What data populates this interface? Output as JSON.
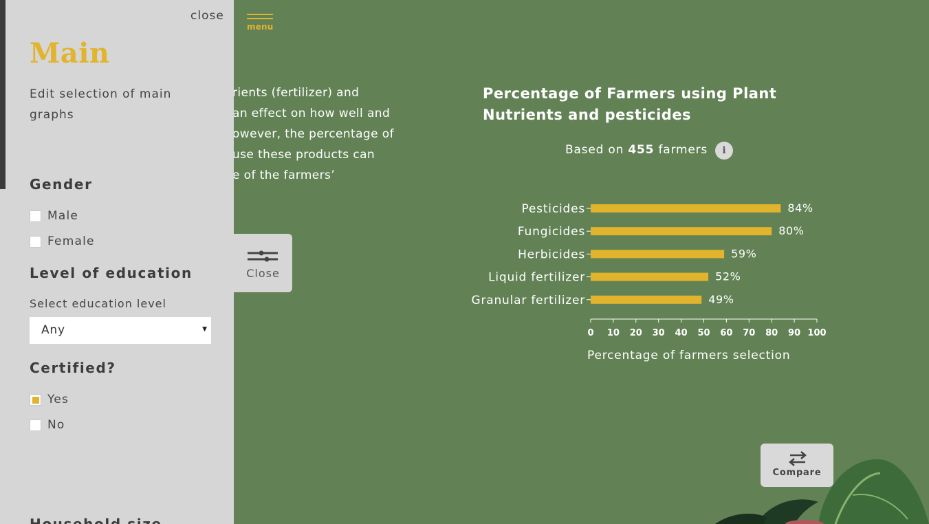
{
  "header": {
    "menu_label": "menu"
  },
  "intro": {
    "lines": [
      "rients (fertilizer) and",
      "an effect on how well and",
      "owever, the percentage of",
      "use these products can",
      "e of the farmers’"
    ]
  },
  "filter_toggle": {
    "label": "Close",
    "icon": "sliders-icon"
  },
  "sidebar": {
    "close_label": "close",
    "title": "Main",
    "description": "Edit selection of main graphs",
    "gender": {
      "heading": "Gender",
      "options": [
        {
          "label": "Male",
          "checked": false
        },
        {
          "label": "Female",
          "checked": false
        }
      ]
    },
    "education": {
      "heading": "Level of education",
      "select_label": "Select education level",
      "selected": "Any"
    },
    "certified": {
      "heading": "Certified?",
      "options": [
        {
          "label": "Yes",
          "checked": true
        },
        {
          "label": "No",
          "checked": false
        }
      ]
    },
    "next_heading": "Household size"
  },
  "chart": {
    "title": "Percentage of Farmers using Plant Nutrients and pesticides",
    "based_prefix": "Based on",
    "based_count": "455",
    "based_suffix": "farmers",
    "info_icon": "info-icon",
    "xlabel": "Percentage of farmers selection"
  },
  "chart_data": {
    "type": "bar",
    "orientation": "horizontal",
    "title": "Percentage of Farmers using Plant Nutrients and pesticides",
    "xlabel": "Percentage of farmers selection",
    "ylabel": "",
    "categories": [
      "Pesticides",
      "Fungicides",
      "Herbicides",
      "Liquid fertilizer",
      "Granular fertilizer"
    ],
    "values": [
      84,
      80,
      59,
      52,
      49
    ],
    "value_labels": [
      "84%",
      "80%",
      "59%",
      "52%",
      "49%"
    ],
    "xlim": [
      0,
      100
    ],
    "xticks": [
      0,
      10,
      20,
      30,
      40,
      50,
      60,
      70,
      80,
      90,
      100
    ],
    "grid": false,
    "bar_color": "#e2b32d"
  },
  "compare": {
    "label": "Compare",
    "icon": "swap-arrows-icon"
  },
  "colors": {
    "background": "#628255",
    "accent": "#e2b32d",
    "panel": "#d6d6d6"
  }
}
